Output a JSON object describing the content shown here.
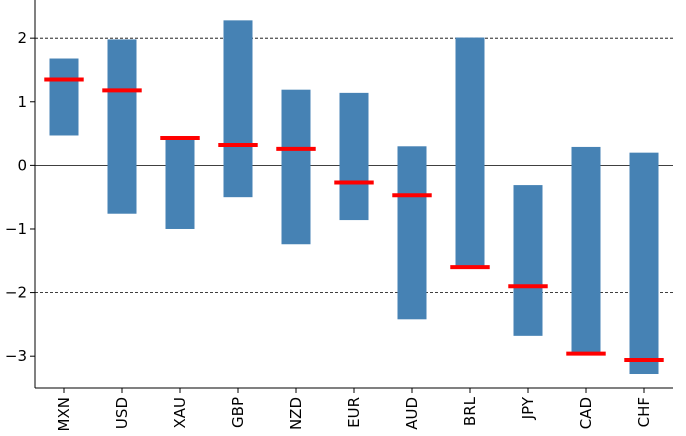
{
  "chart_data": {
    "type": "bar",
    "title": "",
    "xlabel": "",
    "ylabel": "",
    "categories": [
      "MXN",
      "USD",
      "XAU",
      "GBP",
      "NZD",
      "EUR",
      "AUD",
      "BRL",
      "JPY",
      "CAD",
      "CHF"
    ],
    "range_low": [
      0.47,
      -0.76,
      -1.0,
      -0.5,
      -1.24,
      -0.86,
      -2.42,
      -1.6,
      -2.68,
      -2.96,
      -3.28
    ],
    "range_high": [
      1.68,
      1.98,
      0.43,
      2.28,
      1.19,
      1.14,
      0.3,
      2.01,
      -0.31,
      0.29,
      0.2
    ],
    "markers": [
      1.35,
      1.18,
      0.43,
      0.32,
      0.26,
      -0.27,
      -0.47,
      -1.6,
      -1.9,
      -2.96,
      -3.06
    ],
    "ylim": [
      -3.5,
      2.6
    ],
    "yticks": [
      2,
      1,
      0,
      -1,
      -2,
      -3
    ],
    "ytick_labels": [
      "2",
      "1",
      "0",
      "−1",
      "−2",
      "−3"
    ],
    "reference_lines": [
      2,
      -2
    ],
    "zero_line": 0,
    "grid": false,
    "legend": "none",
    "colors": {
      "bar": "#4682b4",
      "marker": "#ff0000",
      "axis": "#000000"
    }
  }
}
